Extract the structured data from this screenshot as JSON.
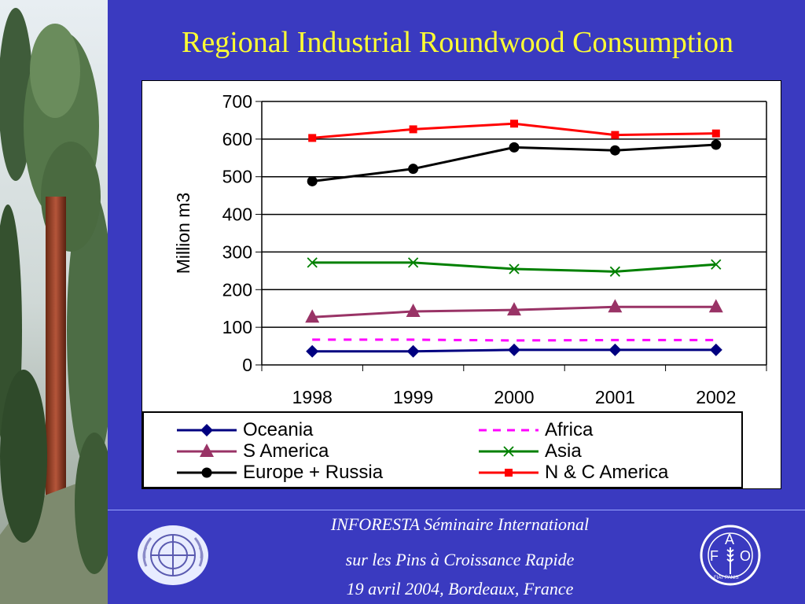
{
  "slide": {
    "title": "Regional Industrial Roundwood Consumption",
    "footer_lines": [
      "INFORESTA Séminaire International",
      "sur les Pins à Croissance Rapide",
      "19 avril 2004, Bordeaux, France"
    ],
    "colors": {
      "background": "#3a3ac0",
      "title": "#ffff33"
    },
    "fao_logo_text": [
      "F",
      "A",
      "O",
      "FIAT PANIS"
    ]
  },
  "chart_data": {
    "type": "line",
    "title": "",
    "xlabel": "",
    "ylabel": "Million m3",
    "x": [
      "1998",
      "1999",
      "2000",
      "2001",
      "2002"
    ],
    "ylim": [
      0,
      700
    ],
    "yticks": [
      0,
      100,
      200,
      300,
      400,
      500,
      600,
      700
    ],
    "grid": "horizontal",
    "legend_position": "bottom",
    "series": [
      {
        "name": "Oceania",
        "values": [
          36,
          36,
          40,
          40,
          40
        ],
        "color": "#000080",
        "marker": "diamond",
        "dash": false
      },
      {
        "name": "Africa",
        "values": [
          67,
          67,
          65,
          66,
          66
        ],
        "color": "#ff00ff",
        "marker": "none",
        "dash": true
      },
      {
        "name": "S America",
        "values": [
          127,
          142,
          146,
          154,
          154
        ],
        "color": "#993366",
        "marker": "triangle",
        "dash": false
      },
      {
        "name": "Asia",
        "values": [
          272,
          272,
          255,
          248,
          267
        ],
        "color": "#008000",
        "marker": "x",
        "dash": false
      },
      {
        "name": "Europe + Russia",
        "values": [
          488,
          521,
          578,
          570,
          585
        ],
        "color": "#000000",
        "marker": "circle",
        "dash": false
      },
      {
        "name": "N & C America",
        "values": [
          603,
          626,
          641,
          611,
          615
        ],
        "color": "#ff0000",
        "marker": "square",
        "dash": false
      }
    ]
  }
}
